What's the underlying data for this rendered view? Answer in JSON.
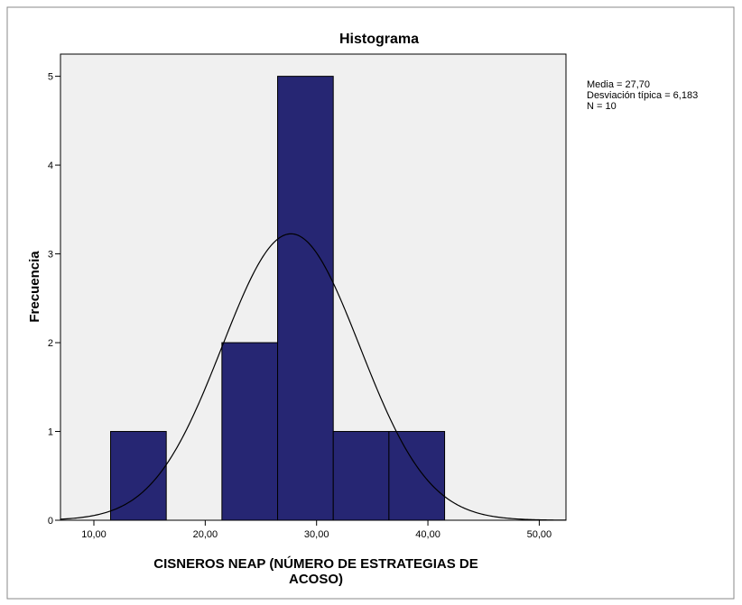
{
  "chart_data": {
    "type": "histogram",
    "title": "Histograma",
    "xlabel": [
      "CISNEROS NEAP (NÚMERO DE ESTRATEGIAS DE",
      "ACOSO)"
    ],
    "ylabel": "Frecuencia",
    "bins": [
      11.5,
      16.5,
      21.5,
      26.5,
      31.5,
      36.5,
      41.5
    ],
    "values": [
      1,
      0,
      2,
      5,
      1,
      1
    ],
    "color": "#262673",
    "xlim": [
      7,
      52.4
    ],
    "xticks": [
      {
        "value": 10,
        "label": "10,00"
      },
      {
        "value": 20,
        "label": "20,00"
      },
      {
        "value": 30,
        "label": "30,00"
      },
      {
        "value": 40,
        "label": "40,00"
      },
      {
        "value": 50,
        "label": "50,00"
      }
    ],
    "ylim": [
      0,
      5.25
    ],
    "yticks": [
      0,
      1,
      2,
      3,
      4,
      5
    ],
    "stats": [
      {
        "value": 27.7,
        "label": "Media = 27,70"
      },
      {
        "value": 6.183,
        "label": "Desviación típica = 6,183"
      },
      {
        "value": 10,
        "label": "N = 10"
      }
    ],
    "normal_curve": true
  }
}
